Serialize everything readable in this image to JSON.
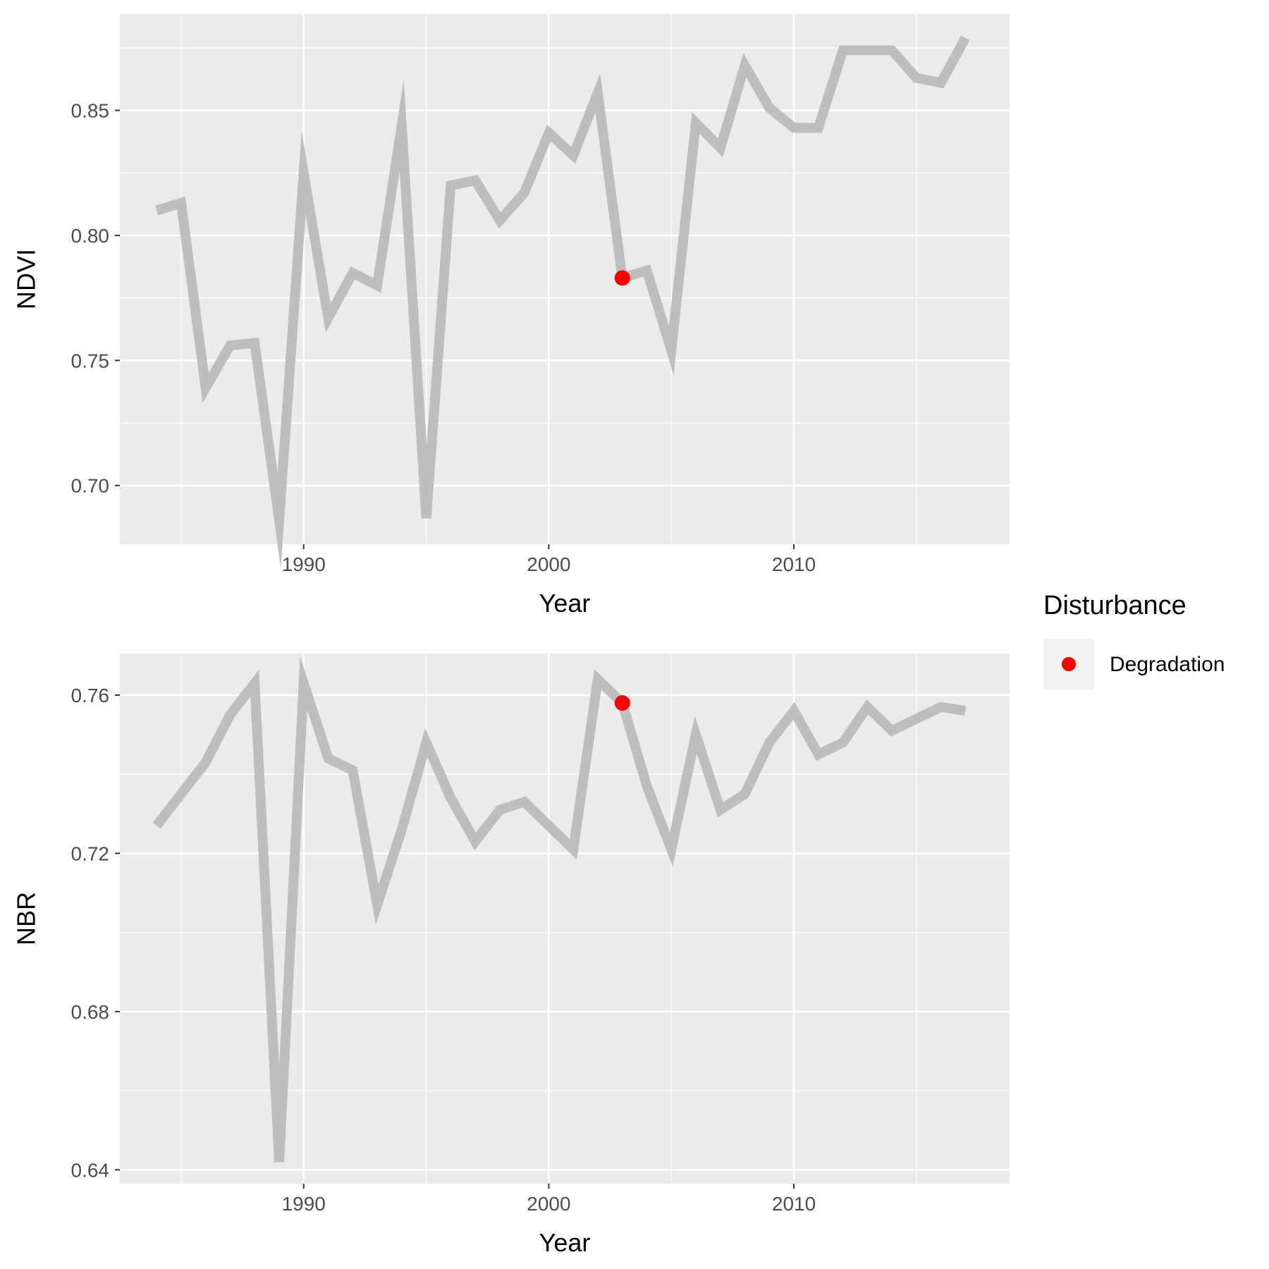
{
  "chart_data": [
    {
      "type": "line",
      "xlabel": "Year",
      "ylabel": "NDVI",
      "xlim": [
        1982.5,
        2018.8
      ],
      "ylim": [
        0.6765,
        0.8885
      ],
      "x_ticks": [
        1990,
        2000,
        2010
      ],
      "x_tick_labels": [
        "1990",
        "2000",
        "2010"
      ],
      "y_ticks": [
        0.7,
        0.75,
        0.8,
        0.85
      ],
      "y_tick_labels": [
        "0.70",
        "0.75",
        "0.80",
        "0.85"
      ],
      "grid": true,
      "series": [
        {
          "color": "#bebebe",
          "x": [
            1984,
            1985,
            1986,
            1987,
            1988,
            1989,
            1990,
            1991,
            1992,
            1993,
            1994,
            1995,
            1996,
            1997,
            1998,
            1999,
            2000,
            2001,
            2002,
            2003,
            2004,
            2005,
            2006,
            2007,
            2008,
            2009,
            2010,
            2011,
            2012,
            2013,
            2014,
            2015,
            2016,
            2017
          ],
          "y": [
            0.81,
            0.813,
            0.739,
            0.756,
            0.757,
            0.686,
            0.825,
            0.767,
            0.785,
            0.78,
            0.844,
            0.687,
            0.82,
            0.822,
            0.806,
            0.817,
            0.841,
            0.832,
            0.857,
            0.783,
            0.786,
            0.754,
            0.845,
            0.835,
            0.868,
            0.851,
            0.843,
            0.843,
            0.874,
            0.874,
            0.874,
            0.863,
            0.861,
            0.879
          ]
        }
      ],
      "points": [
        {
          "name": "Degradation",
          "x": 2003,
          "y": 0.783,
          "color": "#ff0000"
        }
      ]
    },
    {
      "type": "line",
      "xlabel": "Year",
      "ylabel": "NBR",
      "xlim": [
        1982.5,
        2018.8
      ],
      "ylim": [
        0.6365,
        0.7705
      ],
      "x_ticks": [
        1990,
        2000,
        2010
      ],
      "x_tick_labels": [
        "1990",
        "2000",
        "2010"
      ],
      "y_ticks": [
        0.64,
        0.68,
        0.72,
        0.76
      ],
      "y_tick_labels": [
        "0.64",
        "0.68",
        "0.72",
        "0.76"
      ],
      "grid": true,
      "series": [
        {
          "color": "#bebebe",
          "x": [
            1984,
            1985,
            1986,
            1987,
            1988,
            1989,
            1990,
            1991,
            1992,
            1993,
            1994,
            1995,
            1996,
            1997,
            1998,
            1999,
            2000,
            2001,
            2002,
            2003,
            2004,
            2005,
            2006,
            2007,
            2008,
            2009,
            2010,
            2011,
            2012,
            2013,
            2014,
            2015,
            2016,
            2017
          ],
          "y": [
            0.727,
            0.735,
            0.743,
            0.755,
            0.763,
            0.642,
            0.763,
            0.744,
            0.741,
            0.707,
            0.726,
            0.748,
            0.734,
            0.723,
            0.731,
            0.733,
            0.727,
            0.721,
            0.764,
            0.758,
            0.737,
            0.721,
            0.75,
            0.731,
            0.735,
            0.748,
            0.756,
            0.745,
            0.748,
            0.757,
            0.751,
            0.754,
            0.757,
            0.756
          ]
        }
      ],
      "points": [
        {
          "name": "Degradation",
          "x": 2003,
          "y": 0.758,
          "color": "#ff0000"
        }
      ]
    }
  ],
  "legend": {
    "title": "Disturbance",
    "placement": "right",
    "items": [
      {
        "label": "Degradation",
        "color": "#ff0000"
      }
    ]
  }
}
